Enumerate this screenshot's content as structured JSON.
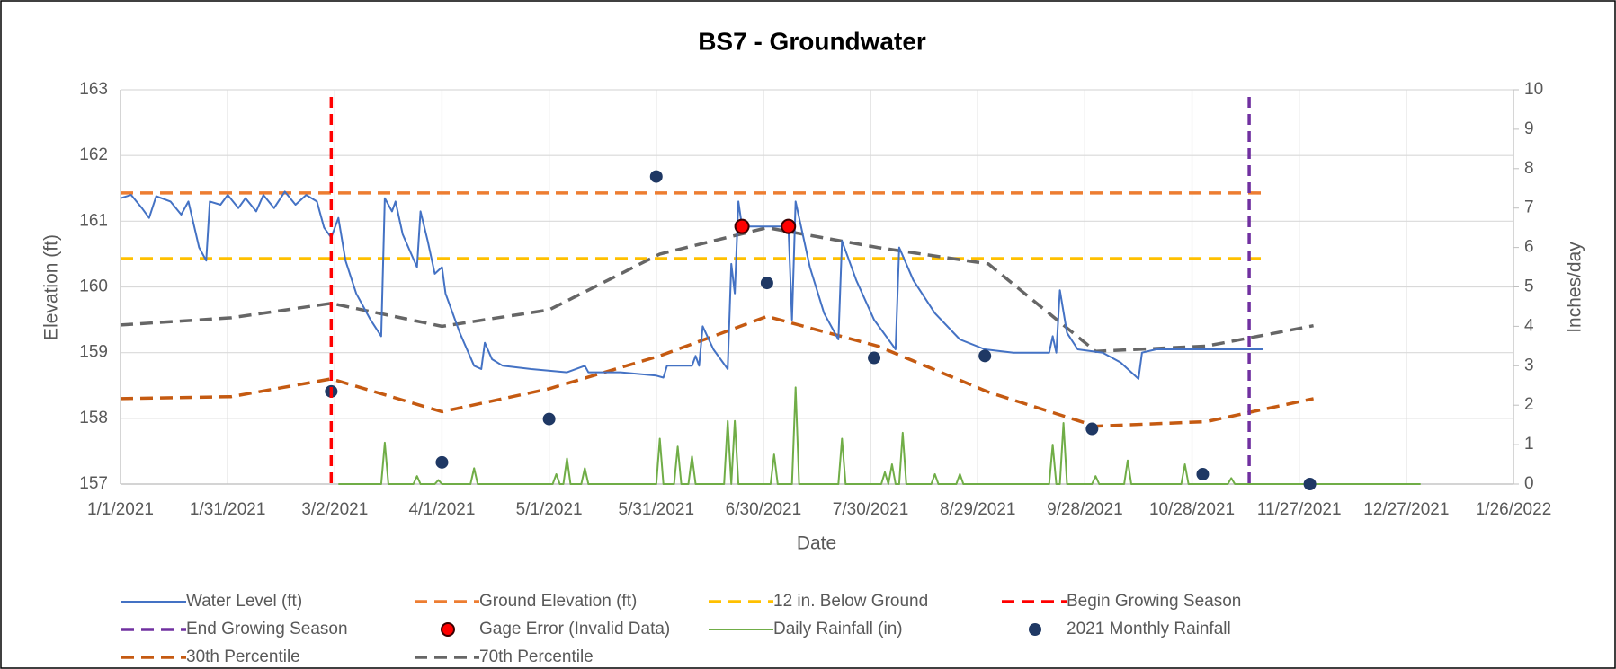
{
  "chart_data": {
    "type": "line",
    "title": "BS7 - Groundwater",
    "x_label": "Date",
    "y_label": "Elevation (ft)",
    "y2_label": "Inches/day",
    "xlim": [
      "2021-01-01",
      "2022-01-26"
    ],
    "xticks": [
      {
        "value": "2021-01-01",
        "label": "1/1/2021"
      },
      {
        "value": "2021-01-31",
        "label": "1/31/2021"
      },
      {
        "value": "2021-03-02",
        "label": "3/2/2021"
      },
      {
        "value": "2021-04-01",
        "label": "4/1/2021"
      },
      {
        "value": "2021-05-01",
        "label": "5/1/2021"
      },
      {
        "value": "2021-05-31",
        "label": "5/31/2021"
      },
      {
        "value": "2021-06-30",
        "label": "6/30/2021"
      },
      {
        "value": "2021-07-30",
        "label": "7/30/2021"
      },
      {
        "value": "2021-08-29",
        "label": "8/29/2021"
      },
      {
        "value": "2021-09-28",
        "label": "9/28/2021"
      },
      {
        "value": "2021-10-28",
        "label": "10/28/2021"
      },
      {
        "value": "2021-11-27",
        "label": "11/27/2021"
      },
      {
        "value": "2021-12-27",
        "label": "12/27/2021"
      },
      {
        "value": "2022-01-26",
        "label": "1/26/2022"
      }
    ],
    "ylim": [
      157,
      163
    ],
    "yticks": [
      157,
      158,
      159,
      160,
      161,
      162,
      163
    ],
    "y2lim": [
      0,
      10
    ],
    "y2ticks": [
      0,
      1,
      2,
      3,
      4,
      5,
      6,
      7,
      8,
      9,
      10
    ],
    "grid": true,
    "legend": "bottom",
    "series": [
      {
        "name": "Water Level (ft)",
        "style": "solid",
        "color": "#4472c4",
        "x": [
          "2021-01-01",
          "2021-01-04",
          "2021-01-07",
          "2021-01-09",
          "2021-01-11",
          "2021-01-15",
          "2021-01-18",
          "2021-01-20",
          "2021-01-23",
          "2021-01-25",
          "2021-01-26",
          "2021-01-29",
          "2021-01-31",
          "2021-02-03",
          "2021-02-05",
          "2021-02-08",
          "2021-02-10",
          "2021-02-13",
          "2021-02-16",
          "2021-02-19",
          "2021-02-22",
          "2021-02-25",
          "2021-02-27",
          "2021-03-01",
          "2021-03-03",
          "2021-03-05",
          "2021-03-08",
          "2021-03-12",
          "2021-03-15",
          "2021-03-16",
          "2021-03-18",
          "2021-03-19",
          "2021-03-21",
          "2021-03-25",
          "2021-03-26",
          "2021-03-28",
          "2021-03-30",
          "2021-04-01",
          "2021-04-02",
          "2021-04-06",
          "2021-04-10",
          "2021-04-12",
          "2021-04-13",
          "2021-04-15",
          "2021-04-18",
          "2021-04-26",
          "2021-05-06",
          "2021-05-11",
          "2021-05-12",
          "2021-05-21",
          "2021-05-31",
          "2021-06-02",
          "2021-06-03",
          "2021-06-10",
          "2021-06-11",
          "2021-06-12",
          "2021-06-13",
          "2021-06-16",
          "2021-06-20",
          "2021-06-21",
          "2021-06-22",
          "2021-06-23",
          "2021-06-24",
          "2021-07-07",
          "2021-07-08",
          "2021-07-09",
          "2021-07-13",
          "2021-07-17",
          "2021-07-21",
          "2021-07-22",
          "2021-07-26",
          "2021-07-31",
          "2021-08-06",
          "2021-08-07",
          "2021-08-11",
          "2021-08-17",
          "2021-08-24",
          "2021-08-31",
          "2021-09-08",
          "2021-09-18",
          "2021-09-19",
          "2021-09-20",
          "2021-09-21",
          "2021-09-23",
          "2021-09-26",
          "2021-10-03",
          "2021-10-08",
          "2021-10-13",
          "2021-10-14",
          "2021-10-18",
          "2021-10-28",
          "2021-11-07",
          "2021-11-17"
        ],
        "values": [
          161.35,
          161.4,
          161.2,
          161.05,
          161.38,
          161.3,
          161.1,
          161.3,
          160.6,
          160.4,
          161.3,
          161.25,
          161.4,
          161.2,
          161.35,
          161.15,
          161.4,
          161.2,
          161.45,
          161.25,
          161.4,
          161.3,
          160.9,
          160.75,
          161.05,
          160.4,
          159.9,
          159.5,
          159.25,
          161.35,
          161.15,
          161.3,
          160.8,
          160.3,
          161.15,
          160.7,
          160.2,
          160.3,
          159.9,
          159.3,
          158.8,
          158.75,
          159.15,
          158.9,
          158.8,
          158.75,
          158.7,
          158.8,
          158.7,
          158.7,
          158.65,
          158.62,
          158.8,
          158.8,
          158.95,
          158.8,
          159.4,
          159.05,
          158.75,
          160.35,
          159.9,
          161.3,
          160.92,
          160.92,
          159.5,
          161.3,
          160.3,
          159.6,
          159.2,
          160.7,
          160.1,
          159.5,
          159.05,
          160.6,
          160.1,
          159.6,
          159.2,
          159.05,
          159.0,
          159.0,
          159.25,
          159.0,
          159.95,
          159.3,
          159.05,
          159.0,
          158.85,
          158.6,
          159.0,
          159.05,
          159.05,
          159.05,
          159.05
        ]
      },
      {
        "name": "Ground Elevation (ft)",
        "style": "dashed",
        "color": "#ed7d31",
        "x": [
          "2021-01-01",
          "2021-11-17"
        ],
        "values": [
          161.43,
          161.43
        ]
      },
      {
        "name": "12 in. Below Ground",
        "style": "dashed",
        "color": "#ffc000",
        "x": [
          "2021-01-01",
          "2021-11-17"
        ],
        "values": [
          160.43,
          160.43
        ]
      },
      {
        "name": "Begin Growing Season",
        "style": "vline",
        "color": "#ff0000",
        "x": "2021-03-01"
      },
      {
        "name": "End Growing Season",
        "style": "vline",
        "color": "#7030a0",
        "x": "2021-11-13"
      },
      {
        "name": "Gage Error (Invalid Data)",
        "style": "marker",
        "color": "#ff0000",
        "x": [
          "2021-06-24",
          "2021-07-07"
        ],
        "values": [
          160.92,
          160.92
        ]
      },
      {
        "name": "Daily Rainfall (in)",
        "style": "solid",
        "color": "#70ad47",
        "axis": "y2",
        "x": [
          "2021-03-03",
          "2021-03-15",
          "2021-03-16",
          "2021-03-17",
          "2021-03-24",
          "2021-03-25",
          "2021-03-26",
          "2021-03-30",
          "2021-03-31",
          "2021-04-01",
          "2021-04-09",
          "2021-04-10",
          "2021-04-11",
          "2021-05-02",
          "2021-05-03",
          "2021-05-04",
          "2021-05-05",
          "2021-05-06",
          "2021-05-07",
          "2021-05-10",
          "2021-05-11",
          "2021-05-12",
          "2021-05-31",
          "2021-06-01",
          "2021-06-02",
          "2021-06-05",
          "2021-06-06",
          "2021-06-07",
          "2021-06-09",
          "2021-06-10",
          "2021-06-11",
          "2021-06-19",
          "2021-06-20",
          "2021-06-21",
          "2021-06-22",
          "2021-06-23",
          "2021-07-02",
          "2021-07-03",
          "2021-07-04",
          "2021-07-08",
          "2021-07-09",
          "2021-07-10",
          "2021-07-21",
          "2021-07-22",
          "2021-07-23",
          "2021-08-02",
          "2021-08-03",
          "2021-08-04",
          "2021-08-05",
          "2021-08-06",
          "2021-08-07",
          "2021-08-08",
          "2021-08-09",
          "2021-08-16",
          "2021-08-17",
          "2021-08-18",
          "2021-08-23",
          "2021-08-24",
          "2021-08-25",
          "2021-09-18",
          "2021-09-19",
          "2021-09-20",
          "2021-09-21",
          "2021-09-22",
          "2021-09-23",
          "2021-09-30",
          "2021-10-01",
          "2021-10-02",
          "2021-10-09",
          "2021-10-10",
          "2021-10-11",
          "2021-10-25",
          "2021-10-26",
          "2021-10-27",
          "2021-11-07",
          "2021-11-08",
          "2021-11-09",
          "2021-12-31"
        ],
        "values": [
          0,
          0,
          1.05,
          0,
          0,
          0.2,
          0,
          0,
          0.1,
          0,
          0,
          0.4,
          0,
          0,
          0.25,
          0,
          0,
          0.65,
          0,
          0,
          0.4,
          0,
          0,
          1.15,
          0,
          0,
          0.95,
          0,
          0,
          0.7,
          0,
          0,
          1.6,
          0,
          1.6,
          0,
          0,
          0.75,
          0,
          0,
          2.45,
          0,
          0,
          1.15,
          0,
          0,
          0.3,
          0,
          0.5,
          0,
          0,
          1.3,
          0,
          0,
          0.25,
          0,
          0,
          0.25,
          0,
          0,
          1.0,
          0,
          0,
          1.55,
          0,
          0,
          0.2,
          0,
          0,
          0.6,
          0,
          0,
          0.5,
          0,
          0,
          0.15,
          0,
          0
        ]
      },
      {
        "name": "2021 Monthly Rainfall",
        "style": "marker",
        "color": "#1f3864",
        "axis": "y2",
        "x": [
          "2021-03-01",
          "2021-04-01",
          "2021-05-01",
          "2021-05-31",
          "2021-07-01",
          "2021-07-31",
          "2021-08-31",
          "2021-09-30",
          "2021-10-31",
          "2021-11-30"
        ],
        "values": [
          2.35,
          0.55,
          1.65,
          7.8,
          5.1,
          3.2,
          3.25,
          1.4,
          0.25,
          0
        ]
      },
      {
        "name": "30th Percentile",
        "style": "dashed",
        "color": "#c55a11",
        "x": [
          "2021-01-01",
          "2021-02-01",
          "2021-03-01",
          "2021-04-01",
          "2021-05-01",
          "2021-06-01",
          "2021-07-01",
          "2021-08-01",
          "2021-09-01",
          "2021-10-01",
          "2021-11-01",
          "2021-12-01"
        ],
        "values": [
          158.3,
          158.33,
          158.6,
          158.1,
          158.45,
          158.95,
          159.55,
          159.1,
          158.4,
          157.88,
          157.95,
          158.3
        ]
      },
      {
        "name": "70th Percentile",
        "style": "dashed",
        "color": "#666666",
        "x": [
          "2021-01-01",
          "2021-02-01",
          "2021-03-01",
          "2021-04-01",
          "2021-05-01",
          "2021-06-01",
          "2021-07-01",
          "2021-08-01",
          "2021-09-01",
          "2021-10-01",
          "2021-11-01",
          "2021-12-01"
        ],
        "values": [
          159.42,
          159.53,
          159.75,
          159.4,
          159.65,
          160.5,
          160.9,
          160.6,
          160.35,
          159.02,
          159.1,
          159.41
        ]
      }
    ]
  }
}
